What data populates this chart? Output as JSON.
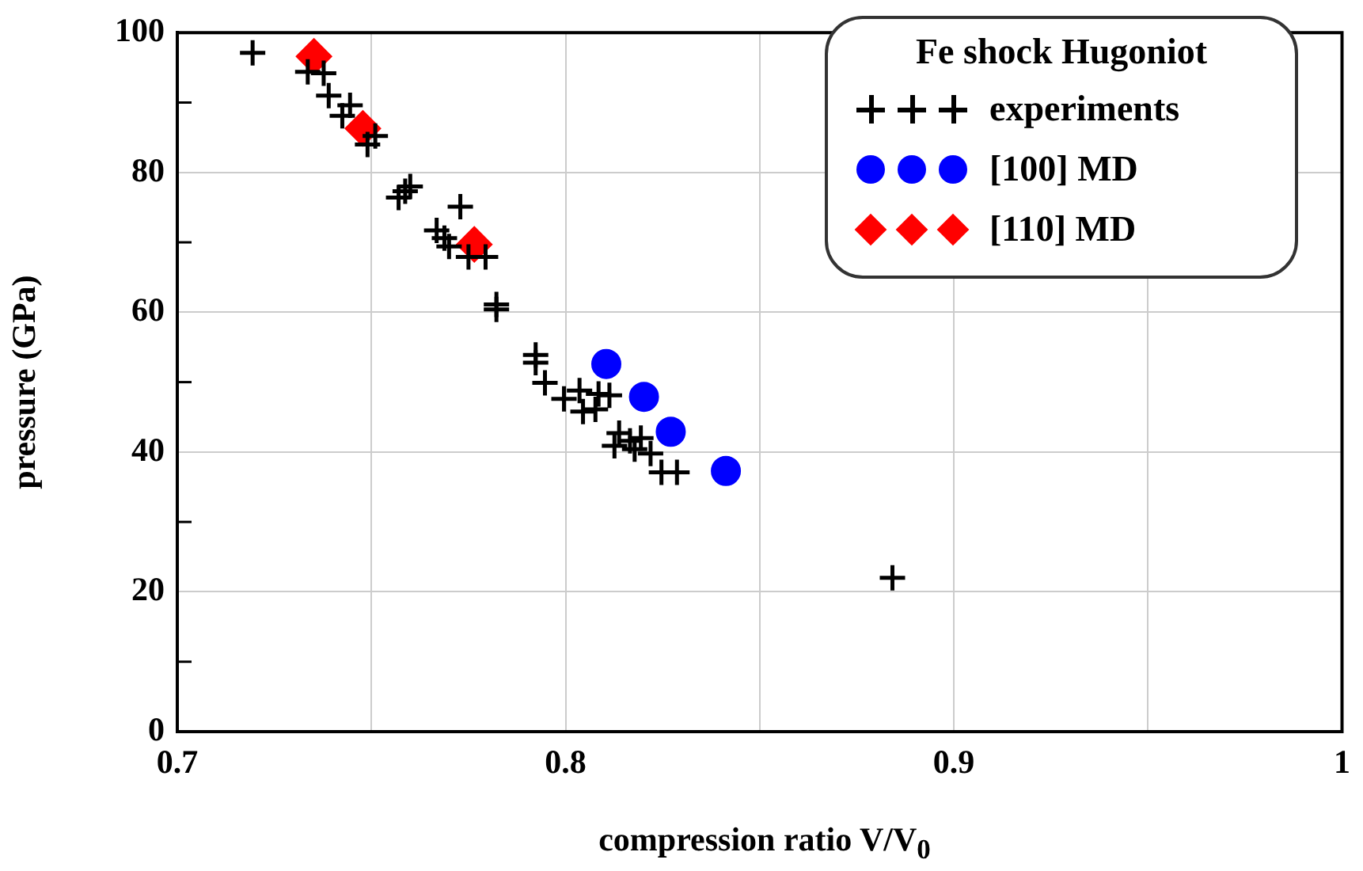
{
  "chart_data": {
    "type": "scatter",
    "xlabel": "compression ratio V/V$_{0}$",
    "ylabel": "pressure (GPa)",
    "legend_title": "Fe shock Hugoniot",
    "xlim": [
      0.7,
      1.0
    ],
    "xticks": [
      0.7,
      {
        "value": 0.75,
        "label": null
      },
      0.8,
      {
        "value": 0.85,
        "label": null
      },
      0.9,
      {
        "value": 0.95,
        "label": null
      },
      {
        "value": 1.0,
        "label": "1"
      }
    ],
    "ylim": [
      0,
      100
    ],
    "yticks": [
      0,
      {
        "value": 10,
        "label": null
      },
      20,
      {
        "value": 30,
        "label": null
      },
      40,
      {
        "value": 50,
        "label": null
      },
      60,
      {
        "value": 70,
        "label": null
      },
      80,
      {
        "value": 90,
        "label": null
      },
      100
    ],
    "grid": true,
    "legend": "top right",
    "series": [
      {
        "name": "experiments",
        "color": "#000000",
        "marker": "cross",
        "x": [
          0.7194,
          0.7336,
          0.7377,
          0.739,
          0.7445,
          0.7425,
          0.751,
          0.749,
          0.7587,
          0.757,
          0.76,
          0.7729,
          0.7668,
          0.7688,
          0.77,
          0.775,
          0.7794,
          0.7822,
          0.7822,
          0.7923,
          0.7923,
          0.7947,
          0.7996,
          0.8036,
          0.8057,
          0.8085,
          0.8113,
          0.8045,
          0.8077,
          0.8138,
          0.8166,
          0.8194,
          0.8126,
          0.8178,
          0.8219,
          0.8247,
          0.8287,
          0.8842
        ],
        "values": [
          97.1,
          94.4,
          94.2,
          91,
          89.6,
          88.1,
          85.2,
          84,
          77.3,
          76.4,
          78,
          75.1,
          71.7,
          70.6,
          69.4,
          67.9,
          67.9,
          61.1,
          60.4,
          53.9,
          52.8,
          49.9,
          47.6,
          48.8,
          null,
          48.3,
          48.1,
          45.8,
          46.1,
          42.7,
          41.6,
          42,
          40.9,
          40.4,
          39.8,
          37.1,
          37.1,
          22.0
        ]
      },
      {
        "name": "[100] MD",
        "color": "#0000ff",
        "marker": "circle",
        "x": [
          0.8105,
          0.8202,
          0.8271,
          0.8413
        ],
        "values": [
          52.6,
          47.9,
          42.9,
          37.3
        ]
      },
      {
        "name": "[110] MD",
        "color": "#ff0000",
        "marker": "diamond",
        "x": [
          0.7352,
          0.7478,
          0.7765
        ],
        "values": [
          96.6,
          86.3,
          69.7
        ]
      }
    ]
  }
}
